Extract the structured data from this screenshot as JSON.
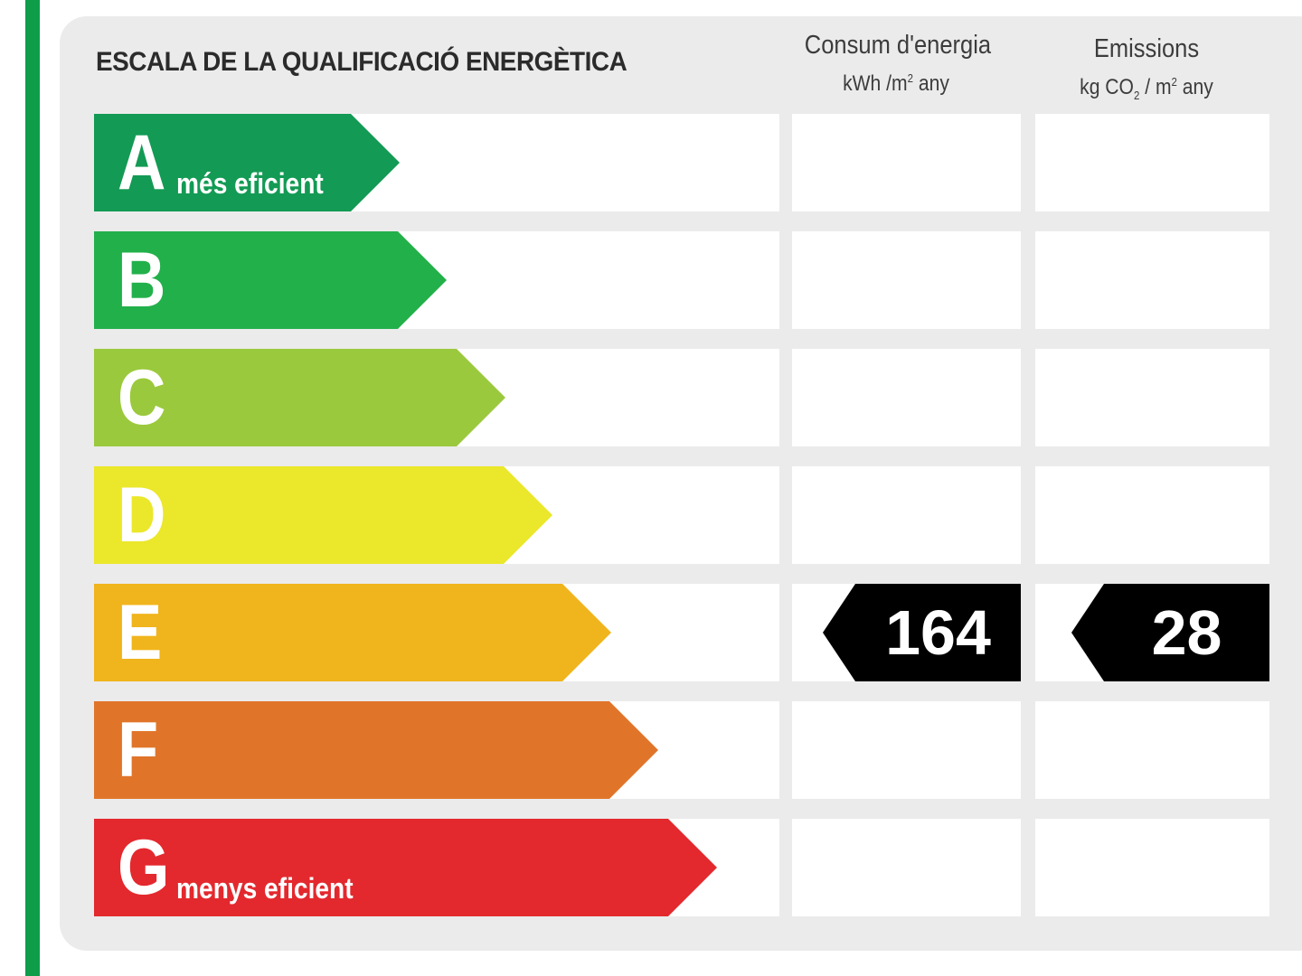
{
  "title": "ESCALA DE LA QUALIFICACIÓ ENERGÈTICA",
  "columns": {
    "energy": {
      "heading": "Consum d'energia",
      "unit_prefix": "kWh /m",
      "unit_sup": "2",
      "unit_suffix": " any"
    },
    "emissions": {
      "heading": "Emissions",
      "unit_prefix": "kg CO",
      "unit_sub": "2",
      "unit_mid": " / m",
      "unit_sup": "2",
      "unit_suffix": " any"
    }
  },
  "ratings": [
    {
      "letter": "A",
      "sublabel": "més eficient",
      "color": "#139a54",
      "width_fraction": 0.26
    },
    {
      "letter": "B",
      "sublabel": "",
      "color": "#22b04a",
      "width_fraction": 0.3
    },
    {
      "letter": "C",
      "sublabel": "",
      "color": "#9bc93d",
      "width_fraction": 0.35
    },
    {
      "letter": "D",
      "sublabel": "",
      "color": "#ebe72a",
      "width_fraction": 0.39
    },
    {
      "letter": "E",
      "sublabel": "",
      "color": "#f0b41c",
      "width_fraction": 0.44
    },
    {
      "letter": "F",
      "sublabel": "",
      "color": "#e0752a",
      "width_fraction": 0.48
    },
    {
      "letter": "G",
      "sublabel": "menys eficient",
      "color": "#e3292e",
      "width_fraction": 0.53
    }
  ],
  "current": {
    "rating": "E",
    "energy_value": "164",
    "emissions_value": "28"
  },
  "colors": {
    "indicator": "#000000",
    "panel": "#ebebeb",
    "stripe": "#0f9d4a"
  }
}
